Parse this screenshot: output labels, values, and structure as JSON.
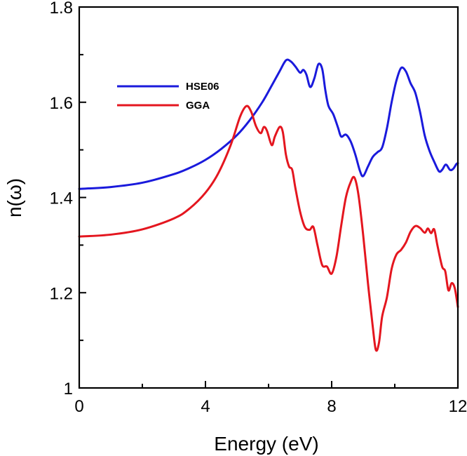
{
  "chart_data": {
    "type": "line",
    "title": "",
    "xlabel": "Energy (eV)",
    "ylabel": "n(ω)",
    "xlim": [
      0,
      12
    ],
    "ylim": [
      1.0,
      1.8
    ],
    "x_major_ticks": [
      0,
      4,
      8,
      12
    ],
    "x_minor_ticks": [
      2,
      6,
      10
    ],
    "y_major_ticks": [
      1.0,
      1.2,
      1.4,
      1.6,
      1.8
    ],
    "y_minor_ticks": [
      1.1,
      1.3,
      1.5,
      1.7
    ],
    "x_tick_labels": [
      "0",
      "4",
      "8",
      "12"
    ],
    "y_tick_labels": [
      "1",
      "1.2",
      "1.4",
      "1.6",
      "1.8"
    ],
    "legend_position": "upper-left",
    "series": [
      {
        "name": "HSE06",
        "color": "#1a1adc",
        "points": [
          [
            0,
            1.418
          ],
          [
            1,
            1.422
          ],
          [
            2,
            1.431
          ],
          [
            3,
            1.449
          ],
          [
            3.5,
            1.462
          ],
          [
            4,
            1.479
          ],
          [
            4.5,
            1.502
          ],
          [
            5,
            1.531
          ],
          [
            5.4,
            1.562
          ],
          [
            5.8,
            1.6
          ],
          [
            6.1,
            1.635
          ],
          [
            6.35,
            1.665
          ],
          [
            6.55,
            1.688
          ],
          [
            6.7,
            1.686
          ],
          [
            6.85,
            1.675
          ],
          [
            7.0,
            1.662
          ],
          [
            7.1,
            1.668
          ],
          [
            7.2,
            1.658
          ],
          [
            7.32,
            1.632
          ],
          [
            7.45,
            1.65
          ],
          [
            7.58,
            1.68
          ],
          [
            7.7,
            1.67
          ],
          [
            7.8,
            1.625
          ],
          [
            7.9,
            1.592
          ],
          [
            8.05,
            1.575
          ],
          [
            8.2,
            1.547
          ],
          [
            8.3,
            1.528
          ],
          [
            8.45,
            1.532
          ],
          [
            8.6,
            1.518
          ],
          [
            8.75,
            1.49
          ],
          [
            8.9,
            1.455
          ],
          [
            9.0,
            1.445
          ],
          [
            9.15,
            1.465
          ],
          [
            9.3,
            1.485
          ],
          [
            9.45,
            1.495
          ],
          [
            9.6,
            1.505
          ],
          [
            9.75,
            1.545
          ],
          [
            9.9,
            1.6
          ],
          [
            10.05,
            1.645
          ],
          [
            10.2,
            1.672
          ],
          [
            10.35,
            1.665
          ],
          [
            10.5,
            1.64
          ],
          [
            10.65,
            1.62
          ],
          [
            10.8,
            1.58
          ],
          [
            10.95,
            1.53
          ],
          [
            11.1,
            1.498
          ],
          [
            11.25,
            1.475
          ],
          [
            11.4,
            1.455
          ],
          [
            11.5,
            1.458
          ],
          [
            11.62,
            1.469
          ],
          [
            11.75,
            1.458
          ],
          [
            11.85,
            1.46
          ],
          [
            11.95,
            1.47
          ],
          [
            12,
            1.472
          ]
        ]
      },
      {
        "name": "GGA",
        "color": "#e4161f",
        "points": [
          [
            0,
            1.318
          ],
          [
            1,
            1.322
          ],
          [
            2,
            1.333
          ],
          [
            3,
            1.356
          ],
          [
            3.5,
            1.377
          ],
          [
            4,
            1.41
          ],
          [
            4.4,
            1.45
          ],
          [
            4.8,
            1.51
          ],
          [
            5.1,
            1.57
          ],
          [
            5.3,
            1.592
          ],
          [
            5.45,
            1.58
          ],
          [
            5.6,
            1.55
          ],
          [
            5.75,
            1.535
          ],
          [
            5.85,
            1.548
          ],
          [
            5.95,
            1.54
          ],
          [
            6.1,
            1.51
          ],
          [
            6.2,
            1.528
          ],
          [
            6.35,
            1.548
          ],
          [
            6.45,
            1.538
          ],
          [
            6.55,
            1.49
          ],
          [
            6.65,
            1.465
          ],
          [
            6.75,
            1.458
          ],
          [
            6.85,
            1.42
          ],
          [
            7.0,
            1.37
          ],
          [
            7.15,
            1.338
          ],
          [
            7.3,
            1.332
          ],
          [
            7.42,
            1.338
          ],
          [
            7.55,
            1.3
          ],
          [
            7.7,
            1.258
          ],
          [
            7.85,
            1.255
          ],
          [
            8.0,
            1.24
          ],
          [
            8.15,
            1.275
          ],
          [
            8.3,
            1.34
          ],
          [
            8.45,
            1.4
          ],
          [
            8.6,
            1.432
          ],
          [
            8.72,
            1.442
          ],
          [
            8.85,
            1.405
          ],
          [
            9.0,
            1.32
          ],
          [
            9.15,
            1.22
          ],
          [
            9.3,
            1.13
          ],
          [
            9.4,
            1.08
          ],
          [
            9.5,
            1.095
          ],
          [
            9.6,
            1.15
          ],
          [
            9.75,
            1.19
          ],
          [
            9.9,
            1.25
          ],
          [
            10.05,
            1.28
          ],
          [
            10.2,
            1.29
          ],
          [
            10.35,
            1.305
          ],
          [
            10.5,
            1.328
          ],
          [
            10.65,
            1.34
          ],
          [
            10.8,
            1.336
          ],
          [
            10.95,
            1.326
          ],
          [
            11.05,
            1.335
          ],
          [
            11.15,
            1.325
          ],
          [
            11.25,
            1.333
          ],
          [
            11.35,
            1.3
          ],
          [
            11.5,
            1.255
          ],
          [
            11.6,
            1.245
          ],
          [
            11.7,
            1.205
          ],
          [
            11.8,
            1.22
          ],
          [
            11.9,
            1.21
          ],
          [
            12,
            1.17
          ]
        ]
      }
    ]
  }
}
